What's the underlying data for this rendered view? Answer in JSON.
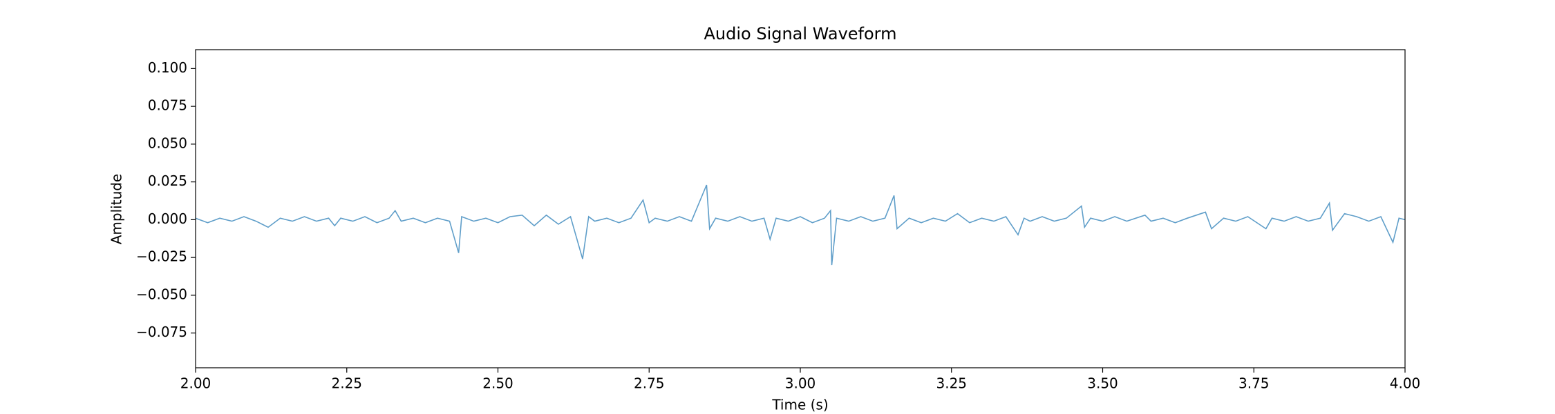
{
  "chart_data": {
    "type": "line",
    "title": "Audio Signal Waveform",
    "x_label": "Time (s)",
    "y_label": "Amplitude",
    "color": "#5f9ec9",
    "x": [
      2.0,
      2.02,
      2.04,
      2.06,
      2.08,
      2.1,
      2.12,
      2.14,
      2.16,
      2.18,
      2.2,
      2.22,
      2.23,
      2.24,
      2.26,
      2.28,
      2.3,
      2.32,
      2.33,
      2.34,
      2.36,
      2.38,
      2.4,
      2.42,
      2.435,
      2.44,
      2.46,
      2.48,
      2.5,
      2.52,
      2.54,
      2.56,
      2.58,
      2.6,
      2.62,
      2.64,
      2.65,
      2.66,
      2.68,
      2.7,
      2.72,
      2.74,
      2.75,
      2.76,
      2.78,
      2.8,
      2.82,
      2.845,
      2.85,
      2.86,
      2.88,
      2.9,
      2.92,
      2.94,
      2.95,
      2.96,
      2.98,
      3.0,
      3.02,
      3.04,
      3.05,
      3.052,
      3.06,
      3.08,
      3.1,
      3.12,
      3.14,
      3.155,
      3.16,
      3.18,
      3.2,
      3.22,
      3.24,
      3.26,
      3.28,
      3.3,
      3.32,
      3.34,
      3.36,
      3.37,
      3.38,
      3.4,
      3.42,
      3.44,
      3.465,
      3.47,
      3.48,
      3.5,
      3.52,
      3.54,
      3.57,
      3.58,
      3.6,
      3.62,
      3.64,
      3.67,
      3.68,
      3.7,
      3.72,
      3.74,
      3.77,
      3.78,
      3.8,
      3.82,
      3.84,
      3.86,
      3.875,
      3.88,
      3.9,
      3.92,
      3.94,
      3.96,
      3.98,
      3.99,
      4.0
    ],
    "values": [
      0.001,
      -0.002,
      0.001,
      -0.001,
      0.002,
      -0.001,
      -0.005,
      0.001,
      -0.001,
      0.002,
      -0.001,
      0.001,
      -0.004,
      0.001,
      -0.001,
      0.002,
      -0.002,
      0.001,
      0.006,
      -0.001,
      0.001,
      -0.002,
      0.001,
      -0.001,
      -0.022,
      0.002,
      -0.001,
      0.001,
      -0.002,
      0.002,
      0.003,
      -0.004,
      0.003,
      -0.003,
      0.002,
      -0.026,
      0.002,
      -0.001,
      0.001,
      -0.002,
      0.001,
      0.013,
      -0.002,
      0.001,
      -0.001,
      0.002,
      -0.001,
      0.023,
      -0.006,
      0.001,
      -0.001,
      0.002,
      -0.001,
      0.001,
      -0.013,
      0.001,
      -0.001,
      0.002,
      -0.002,
      0.001,
      0.006,
      -0.03,
      0.001,
      -0.001,
      0.002,
      -0.001,
      0.001,
      0.016,
      -0.006,
      0.001,
      -0.002,
      0.001,
      -0.001,
      0.004,
      -0.002,
      0.001,
      -0.001,
      0.002,
      -0.01,
      0.001,
      -0.001,
      0.002,
      -0.001,
      0.001,
      0.009,
      -0.005,
      0.001,
      -0.001,
      0.002,
      -0.001,
      0.003,
      -0.001,
      0.001,
      -0.002,
      0.001,
      0.005,
      -0.006,
      0.001,
      -0.001,
      0.002,
      -0.006,
      0.001,
      -0.001,
      0.002,
      -0.001,
      0.001,
      0.011,
      -0.007,
      0.004,
      0.002,
      -0.001,
      0.002,
      -0.015,
      0.001,
      0.0
    ],
    "xlim": [
      2.0,
      4.0
    ],
    "xticks": [
      {
        "value": 2.0,
        "label": "2.00"
      },
      {
        "value": 2.25,
        "label": "2.25"
      },
      {
        "value": 2.5,
        "label": "2.50"
      },
      {
        "value": 2.75,
        "label": "2.75"
      },
      {
        "value": 3.0,
        "label": "3.00"
      },
      {
        "value": 3.25,
        "label": "3.25"
      },
      {
        "value": 3.5,
        "label": "3.50"
      },
      {
        "value": 3.75,
        "label": "3.75"
      },
      {
        "value": 4.0,
        "label": "4.00"
      }
    ],
    "ylim": [
      -0.098,
      0.1125
    ],
    "yticks": [
      {
        "value": -0.075,
        "label": "−0.075"
      },
      {
        "value": -0.05,
        "label": "−0.050"
      },
      {
        "value": -0.025,
        "label": "−0.025"
      },
      {
        "value": 0,
        "label": "0.000"
      },
      {
        "value": 0.025,
        "label": "0.025"
      },
      {
        "value": 0.05,
        "label": "0.050"
      },
      {
        "value": 0.075,
        "label": "0.075"
      },
      {
        "value": 0.1,
        "label": "0.100"
      }
    ]
  }
}
